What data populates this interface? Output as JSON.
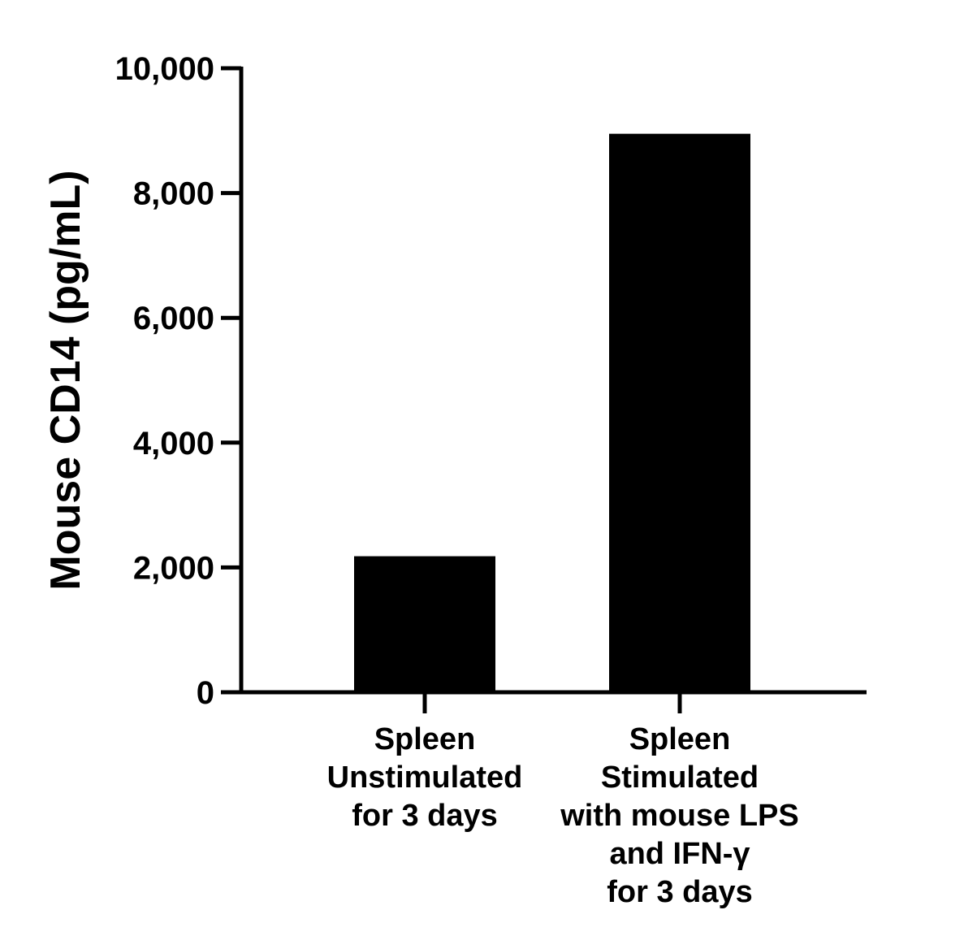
{
  "chart_data": {
    "type": "bar",
    "ylabel": "Mouse CD14 (pg/mL)",
    "xlabel": "",
    "title": "",
    "ylim": [
      0,
      10000
    ],
    "yticks": [
      0,
      2000,
      4000,
      6000,
      8000,
      10000
    ],
    "ytick_labels": [
      "0",
      "2,000",
      "4,000",
      "6,000",
      "8,000",
      "10,000"
    ],
    "categories": [
      [
        "Spleen",
        "Unstimulated",
        "for 3 days"
      ],
      [
        "Spleen",
        "Stimulated",
        "with mouse LPS",
        "and IFN-γ",
        "for 3 days"
      ]
    ],
    "values": [
      2180,
      8950
    ],
    "bar_color": "#000000",
    "grid": false,
    "legend": "none"
  }
}
